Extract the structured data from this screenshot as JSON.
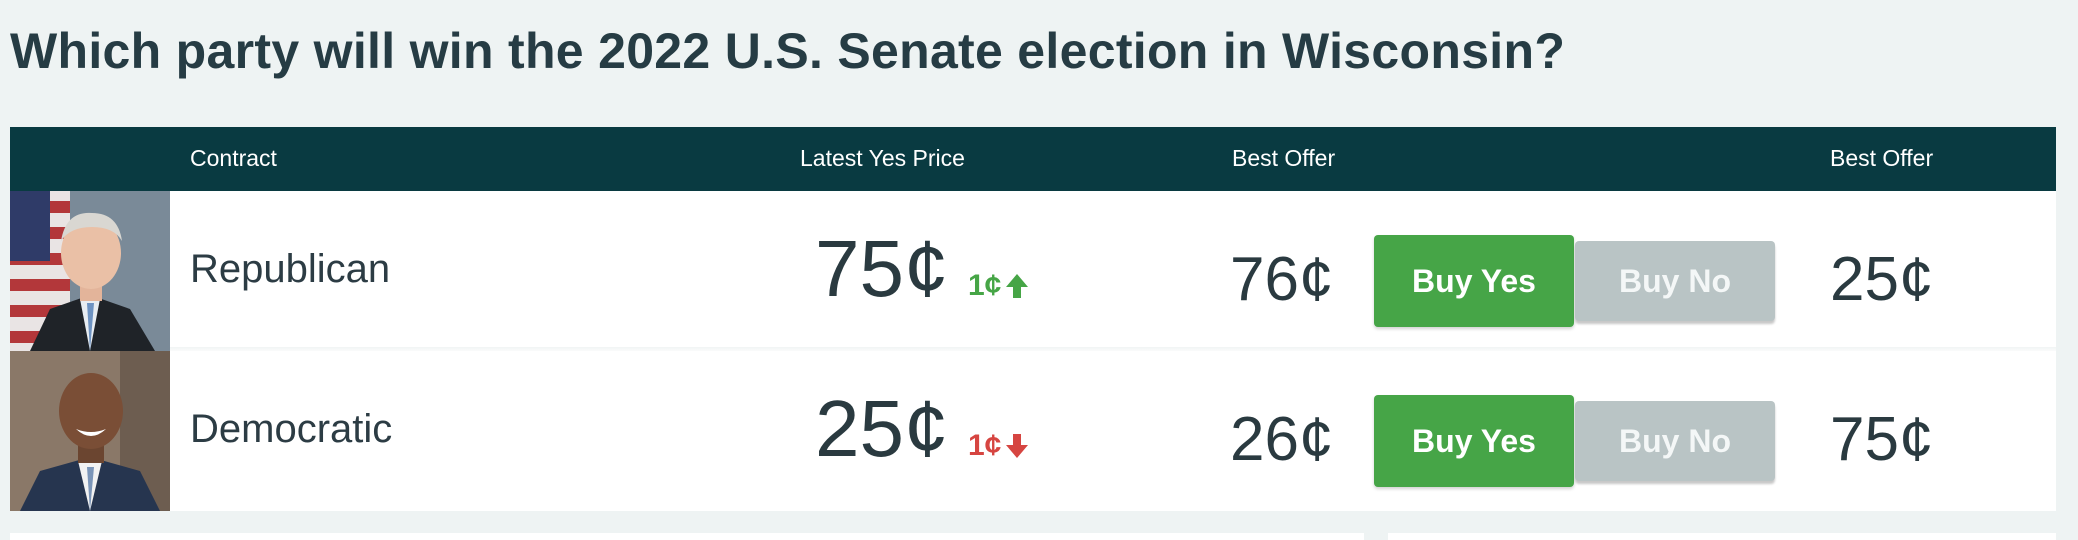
{
  "page": {
    "title": "Which party will win the 2022 U.S. Senate election in Wisconsin?"
  },
  "table": {
    "headers": {
      "contract": "Contract",
      "latest_yes_price": "Latest Yes Price",
      "best_offer_yes": "Best Offer",
      "best_offer_no": "Best Offer"
    },
    "rows": [
      {
        "name": "Republican",
        "latest_price": "75¢",
        "change": "1¢",
        "change_direction": "up",
        "best_offer_yes": "76¢",
        "buy_yes_label": "Buy Yes",
        "buy_no_label": "Buy No",
        "best_offer_no": "25¢"
      },
      {
        "name": "Democratic",
        "latest_price": "25¢",
        "change": "1¢",
        "change_direction": "down",
        "best_offer_yes": "26¢",
        "buy_yes_label": "Buy Yes",
        "buy_no_label": "Buy No",
        "best_offer_no": "75¢"
      }
    ]
  },
  "colors": {
    "header_bg": "#093a41",
    "buy_yes": "#46a547",
    "buy_no": "#b9c4c5",
    "up": "#46a546",
    "down": "#d64541"
  },
  "icons": {
    "up": "arrow-up-icon",
    "down": "arrow-down-icon"
  }
}
